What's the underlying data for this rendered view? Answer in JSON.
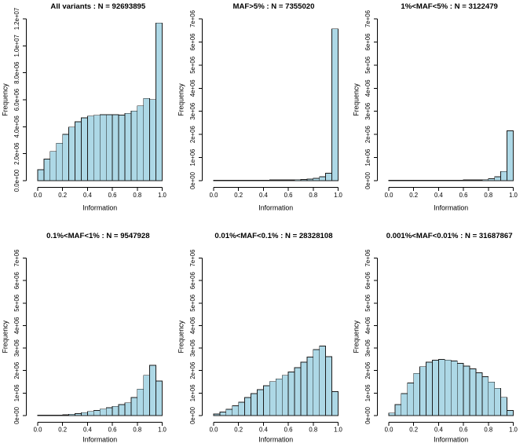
{
  "figure": {
    "description": "Histograms of imputation information score by minor allele frequency category",
    "xlabel": "Information",
    "ylabel": "Frequency"
  },
  "colors": {
    "bar_fill": "#ADD8E6",
    "bar_stroke": "#1c1c1c",
    "axis": "#000000",
    "text": "#000000",
    "background": "#ffffff"
  },
  "chart_data": [
    {
      "type": "bar",
      "title": "All variants : N = 92693895",
      "n_label": "92693895",
      "xlabel": "Information",
      "ylabel": "Frequency",
      "bin_start": 0.0,
      "bin_width": 0.05,
      "values": [
        820000,
        1610000,
        2170000,
        2780000,
        3440000,
        3980000,
        4370000,
        4660000,
        4790000,
        4850000,
        4890000,
        4890000,
        4890000,
        4870000,
        4990000,
        5170000,
        5550000,
        6100000,
        6020000,
        11690000
      ],
      "xlim": [
        0.0,
        1.0
      ],
      "ylim": [
        0,
        12000000
      ],
      "xtick_values": [
        0.0,
        0.2,
        0.4,
        0.6,
        0.8,
        1.0
      ],
      "xtick_labels": [
        "0.0",
        "0.2",
        "0.4",
        "0.6",
        "0.8",
        "1.0"
      ],
      "ytick_values": [
        0,
        2000000,
        4000000,
        6000000,
        8000000,
        10000000,
        12000000
      ],
      "ytick_labels": [
        "0.0e+00",
        "2.0e+06",
        "4.0e+06",
        "6.0e+06",
        "8.0e+06",
        "1.0e+07",
        "1.2e+07"
      ],
      "grid": false,
      "legend": false
    },
    {
      "type": "bar",
      "title": "MAF>5% : N = 7355020",
      "n_label": "7355020",
      "xlabel": "Information",
      "ylabel": "Frequency",
      "bin_start": 0.0,
      "bin_width": 0.05,
      "values": [
        20000,
        20000,
        20000,
        20000,
        20000,
        20000,
        25000,
        25000,
        25000,
        30000,
        30000,
        30000,
        35000,
        40000,
        50000,
        70000,
        100000,
        170000,
        320000,
        6570000
      ],
      "xlim": [
        0.0,
        1.0
      ],
      "ylim": [
        0,
        7000000
      ],
      "xtick_values": [
        0.0,
        0.2,
        0.4,
        0.6,
        0.8,
        1.0
      ],
      "xtick_labels": [
        "0.0",
        "0.2",
        "0.4",
        "0.6",
        "0.8",
        "1.0"
      ],
      "ytick_values": [
        0,
        1000000,
        2000000,
        3000000,
        4000000,
        5000000,
        6000000,
        7000000
      ],
      "ytick_labels": [
        "0e+00",
        "1e+06",
        "2e+06",
        "3e+06",
        "4e+06",
        "5e+06",
        "6e+06",
        "7e+06"
      ],
      "grid": false,
      "legend": false
    },
    {
      "type": "bar",
      "title": "1%<MAF<5% : N = 3122479",
      "n_label": "3122479",
      "xlabel": "Information",
      "ylabel": "Frequency",
      "bin_start": 0.0,
      "bin_width": 0.05,
      "values": [
        15000,
        15000,
        15000,
        15000,
        15000,
        15000,
        15000,
        20000,
        20000,
        20000,
        25000,
        25000,
        30000,
        30000,
        35000,
        45000,
        80000,
        170000,
        400000,
        2160000
      ],
      "xlim": [
        0.0,
        1.0
      ],
      "ylim": [
        0,
        7000000
      ],
      "xtick_values": [
        0.0,
        0.2,
        0.4,
        0.6,
        0.8,
        1.0
      ],
      "xtick_labels": [
        "0.0",
        "0.2",
        "0.4",
        "0.6",
        "0.8",
        "1.0"
      ],
      "ytick_values": [
        0,
        1000000,
        2000000,
        3000000,
        4000000,
        5000000,
        6000000,
        7000000
      ],
      "ytick_labels": [
        "0e+00",
        "1e+06",
        "2e+06",
        "3e+06",
        "4e+06",
        "5e+06",
        "6e+06",
        "7e+06"
      ],
      "grid": false,
      "legend": false
    },
    {
      "type": "bar",
      "title": "0.1%<MAF<1% : N = 9547928",
      "n_label": "9547928",
      "xlabel": "Information",
      "ylabel": "Frequency",
      "bin_start": 0.0,
      "bin_width": 0.05,
      "values": [
        10000,
        10000,
        15000,
        20000,
        35000,
        60000,
        90000,
        130000,
        180000,
        230000,
        290000,
        350000,
        410000,
        490000,
        570000,
        800000,
        1180000,
        1790000,
        2230000,
        1540000
      ],
      "xlim": [
        0.0,
        1.0
      ],
      "ylim": [
        0,
        7000000
      ],
      "xtick_values": [
        0.0,
        0.2,
        0.4,
        0.6,
        0.8,
        1.0
      ],
      "xtick_labels": [
        "0.0",
        "0.2",
        "0.4",
        "0.6",
        "0.8",
        "1.0"
      ],
      "ytick_values": [
        0,
        1000000,
        2000000,
        3000000,
        4000000,
        5000000,
        6000000,
        7000000
      ],
      "ytick_labels": [
        "0e+00",
        "1e+06",
        "2e+06",
        "3e+06",
        "4e+06",
        "5e+06",
        "6e+06",
        "7e+06"
      ],
      "grid": false,
      "legend": false
    },
    {
      "type": "bar",
      "title": "0.01%<MAF<0.1% : N = 28328108",
      "n_label": "28328108",
      "xlabel": "Information",
      "ylabel": "Frequency",
      "bin_start": 0.0,
      "bin_width": 0.05,
      "values": [
        70000,
        160000,
        280000,
        440000,
        590000,
        800000,
        980000,
        1150000,
        1330000,
        1510000,
        1630000,
        1790000,
        1940000,
        2130000,
        2370000,
        2600000,
        2930000,
        3090000,
        2620000,
        1070000
      ],
      "xlim": [
        0.0,
        1.0
      ],
      "ylim": [
        0,
        7000000
      ],
      "xtick_values": [
        0.0,
        0.2,
        0.4,
        0.6,
        0.8,
        1.0
      ],
      "xtick_labels": [
        "0.0",
        "0.2",
        "0.4",
        "0.6",
        "0.8",
        "1.0"
      ],
      "ytick_values": [
        0,
        1000000,
        2000000,
        3000000,
        4000000,
        5000000,
        6000000,
        7000000
      ],
      "ytick_labels": [
        "0e+00",
        "1e+06",
        "2e+06",
        "3e+06",
        "4e+06",
        "5e+06",
        "6e+06",
        "7e+06"
      ],
      "grid": false,
      "legend": false
    },
    {
      "type": "bar",
      "title": "0.001%<MAF<0.01% : N = 31687867",
      "n_label": "31687867",
      "xlabel": "Information",
      "ylabel": "Frequency",
      "bin_start": 0.0,
      "bin_width": 0.05,
      "values": [
        110000,
        490000,
        980000,
        1450000,
        1880000,
        2170000,
        2370000,
        2460000,
        2500000,
        2470000,
        2430000,
        2320000,
        2200000,
        2080000,
        1900000,
        1730000,
        1490000,
        1210000,
        810000,
        230000
      ],
      "xlim": [
        0.0,
        1.0
      ],
      "ylim": [
        0,
        7000000
      ],
      "xtick_values": [
        0.0,
        0.2,
        0.4,
        0.6,
        0.8,
        1.0
      ],
      "xtick_labels": [
        "0.0",
        "0.2",
        "0.4",
        "0.6",
        "0.8",
        "1.0"
      ],
      "ytick_values": [
        0,
        1000000,
        2000000,
        3000000,
        4000000,
        5000000,
        6000000,
        7000000
      ],
      "ytick_labels": [
        "0e+00",
        "1e+06",
        "2e+06",
        "3e+06",
        "4e+06",
        "5e+06",
        "6e+06",
        "7e+06"
      ],
      "grid": false,
      "legend": false
    }
  ]
}
